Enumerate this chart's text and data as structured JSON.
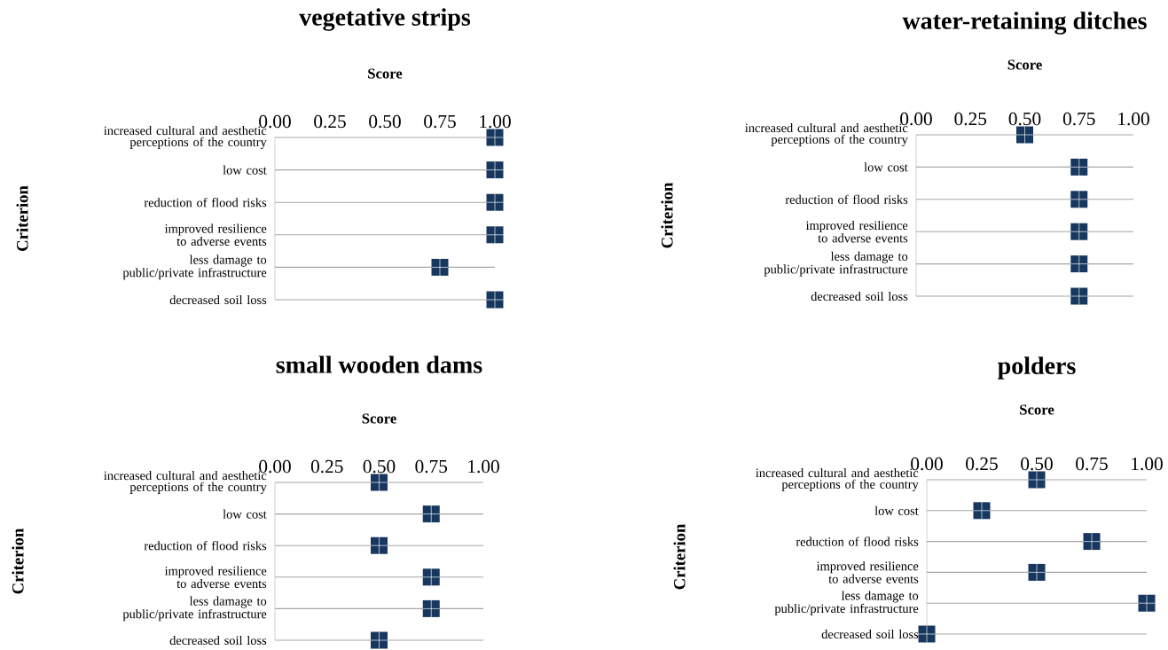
{
  "chart_data": [
    {
      "type": "scatter",
      "orientation": "horizontal",
      "title": "vegetative strips",
      "xlabel": "Score",
      "ylabel": "Criterion",
      "categories": [
        "increased cultural and aesthetic perceptions of the country",
        "low cost",
        "reduction of  flood risks",
        "improved resilience to adverse events",
        "less damage to public/private infrastructure",
        "decreased soil loss"
      ],
      "values": [
        1,
        1,
        1,
        1,
        0.75,
        1
      ],
      "color": "#17375e",
      "marker": "square",
      "grid": "y",
      "xlim": [
        0,
        1
      ],
      "xticks": [
        {
          "value": 0,
          "label": "0.00"
        },
        {
          "value": 0.25,
          "label": "0.25"
        },
        {
          "value": 0.5,
          "label": "0.50"
        },
        {
          "value": 0.75,
          "label": "0.75"
        },
        {
          "value": 1,
          "label": "1.00"
        }
      ]
    },
    {
      "type": "scatter",
      "orientation": "horizontal",
      "title": "water-retaining ditches",
      "xlabel": "Score",
      "ylabel": "Criterion",
      "categories": [
        "increased cultural and aesthetic perceptions of the country",
        "low cost",
        "reduction of  flood risks",
        "improved resilience to adverse events",
        "less damage to public/private infrastructure",
        "decreased soil loss"
      ],
      "values": [
        0.5,
        0.75,
        0.75,
        0.75,
        0.75,
        0.75
      ],
      "color": "#17375e",
      "marker": "square",
      "grid": "y",
      "xlim": [
        0,
        1
      ],
      "xticks": [
        {
          "value": 0,
          "label": "0.00"
        },
        {
          "value": 0.25,
          "label": "0.25"
        },
        {
          "value": 0.5,
          "label": "0.50"
        },
        {
          "value": 0.75,
          "label": "0.75"
        },
        {
          "value": 1,
          "label": "1.00"
        }
      ]
    },
    {
      "type": "scatter",
      "orientation": "horizontal",
      "title": "small wooden dams",
      "xlabel": "Score",
      "ylabel": "Criterion",
      "categories": [
        "increased cultural and aesthetic perceptions of the country",
        "low cost",
        "reduction of  flood risks",
        "improved resilience to adverse events",
        "less damage to public/private infrastructure",
        "decreased soil loss"
      ],
      "values": [
        0.5,
        0.75,
        0.5,
        0.75,
        0.75,
        0.5
      ],
      "color": "#17375e",
      "marker": "square",
      "grid": "y",
      "xlim": [
        0,
        1
      ],
      "xticks": [
        {
          "value": 0,
          "label": "0.00"
        },
        {
          "value": 0.25,
          "label": "0.25"
        },
        {
          "value": 0.5,
          "label": "0.50"
        },
        {
          "value": 0.75,
          "label": "0.75"
        },
        {
          "value": 1,
          "label": "1.00"
        }
      ]
    },
    {
      "type": "scatter",
      "orientation": "horizontal",
      "title": "polders",
      "xlabel": "Score",
      "ylabel": "Criterion",
      "categories": [
        "increased cultural and aesthetic perceptions of the country",
        "low cost",
        "reduction of  flood risks",
        "improved resilience to adverse events",
        "less damage to public/private infrastructure",
        "decreased soil loss"
      ],
      "values": [
        0.5,
        0.25,
        0.75,
        0.5,
        1,
        0
      ],
      "color": "#17375e",
      "marker": "square",
      "grid": "y",
      "xlim": [
        0,
        1
      ],
      "xticks": [
        {
          "value": 0,
          "label": "0.00"
        },
        {
          "value": 0.25,
          "label": "0.25"
        },
        {
          "value": 0.5,
          "label": "0.50"
        },
        {
          "value": 0.75,
          "label": "0.75"
        },
        {
          "value": 1,
          "label": "1.00"
        }
      ]
    }
  ]
}
